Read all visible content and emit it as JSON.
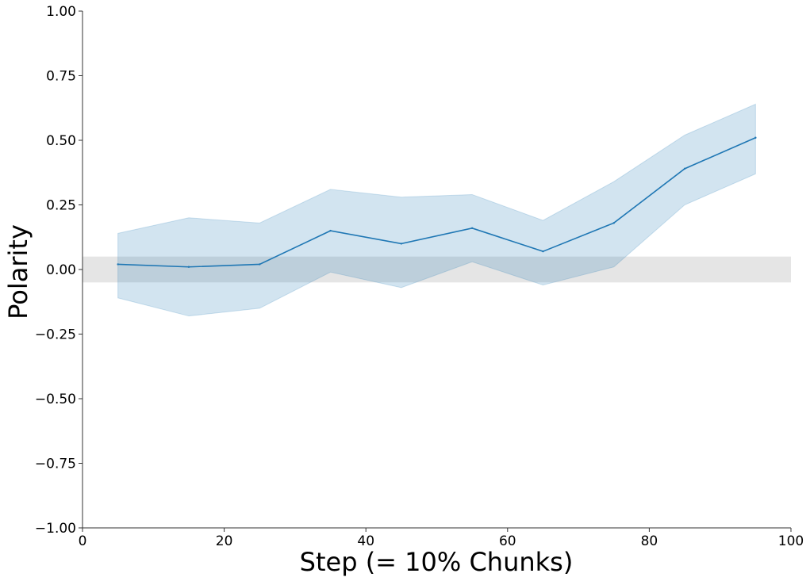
{
  "chart_data": {
    "type": "line",
    "title": "",
    "xlabel": "Step (= 10% Chunks)",
    "ylabel": "Polarity",
    "xlim": [
      0,
      100
    ],
    "ylim": [
      -1.0,
      1.0
    ],
    "x_ticks": [
      "0",
      "20",
      "40",
      "60",
      "80",
      "100"
    ],
    "y_ticks": [
      "−1.00",
      "−0.75",
      "−0.50",
      "−0.25",
      "0.00",
      "0.25",
      "0.50",
      "0.75",
      "1.00"
    ],
    "grid": false,
    "legend": "none",
    "neutral_band": {
      "y_min": -0.05,
      "y_max": 0.05,
      "color": "#e5e5e5"
    },
    "series": [
      {
        "x": [
          5,
          15,
          25,
          35,
          45,
          55,
          65,
          75,
          85,
          95
        ],
        "y": [
          0.02,
          0.01,
          0.02,
          0.15,
          0.1,
          0.16,
          0.07,
          0.18,
          0.39,
          0.51
        ],
        "ci_upper": [
          0.14,
          0.2,
          0.18,
          0.31,
          0.28,
          0.29,
          0.19,
          0.34,
          0.52,
          0.64
        ],
        "ci_lower": [
          -0.11,
          -0.18,
          -0.15,
          -0.01,
          -0.07,
          0.03,
          -0.06,
          0.01,
          0.25,
          0.37
        ],
        "color": "#1f77b4",
        "band_color": "#1f77b4"
      }
    ]
  }
}
